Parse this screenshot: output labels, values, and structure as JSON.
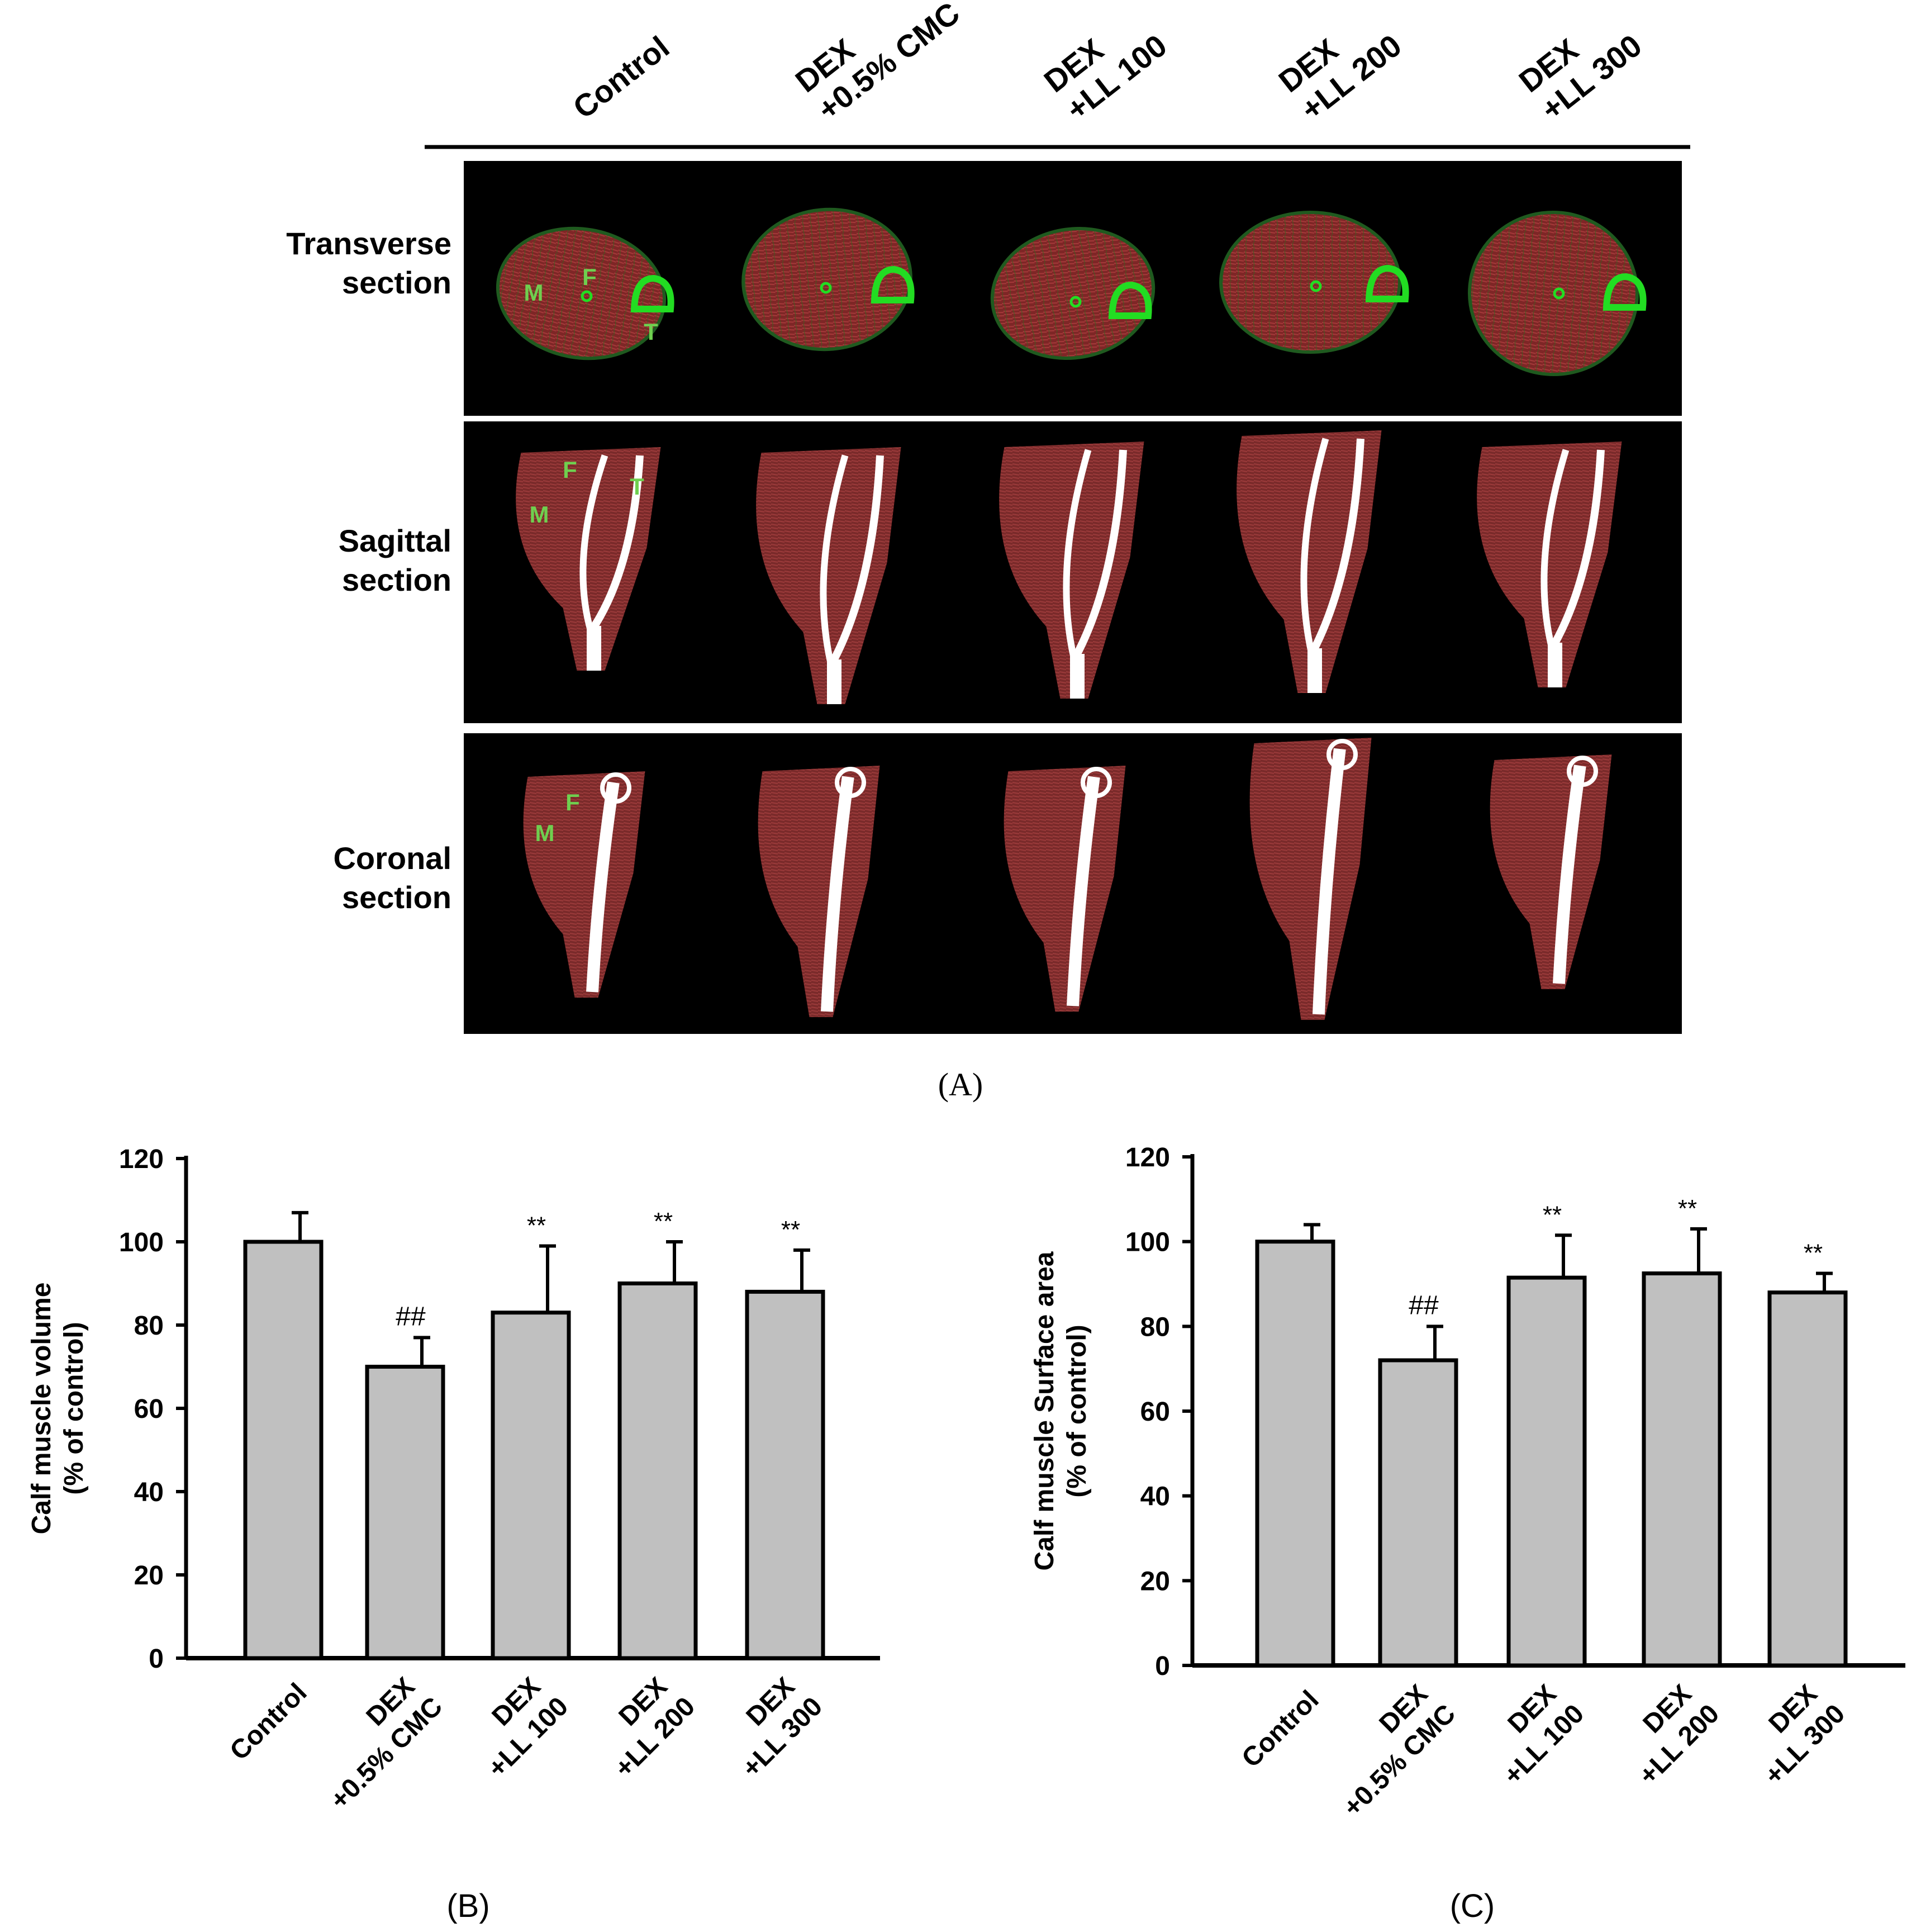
{
  "panel_a": {
    "label": "(A)",
    "groups": [
      "Control",
      "DEX\n+0.5% CMC",
      "DEX\n+LL 100",
      "DEX\n+LL 200",
      "DEX\n+LL 300"
    ],
    "rows": [
      "Transverse\nsection",
      "Sagittal\nsection",
      "Coronal\nsection"
    ],
    "annotations": {
      "transverse": [
        "M",
        "F",
        "T"
      ],
      "sagittal": [
        "F",
        "T",
        "M"
      ],
      "coronal": [
        "F",
        "M"
      ]
    },
    "colors": {
      "background": "#000000",
      "muscle": "#8a2a2a",
      "bone_transverse": "#22dd22",
      "bone_long": "#ffffff",
      "label": "#6fcf4f"
    }
  },
  "chart_data": [
    {
      "type": "bar",
      "panel_label": "(B)",
      "categories": [
        "Control",
        "DEX\n+0.5% CMC",
        "DEX\n+LL 100",
        "DEX\n+LL 200",
        "DEX\n+LL 300"
      ],
      "values": [
        100,
        70,
        83,
        90,
        88
      ],
      "errors": [
        7,
        7,
        16,
        10,
        10
      ],
      "significance": [
        "",
        "##",
        "**",
        "**",
        "**"
      ],
      "ylabel": "Calf muscle volume\n(% of control)",
      "ylim": [
        0,
        120
      ],
      "yticks": [
        0,
        20,
        40,
        60,
        80,
        100,
        120
      ],
      "bar_color": "#c0c0c0",
      "grid": false
    },
    {
      "type": "bar",
      "panel_label": "(C)",
      "categories": [
        "Control",
        "DEX\n+0.5% CMC",
        "DEX\n+LL 100",
        "DEX\n+LL 200",
        "DEX\n+LL 300"
      ],
      "values": [
        100,
        72,
        91.5,
        92.5,
        88
      ],
      "errors": [
        4,
        8,
        10,
        10.5,
        4.5
      ],
      "significance": [
        "",
        "##",
        "**",
        "**",
        "**"
      ],
      "ylabel": "Calf muscle Surface area\n(% of control)",
      "ylim": [
        0,
        120
      ],
      "yticks": [
        0,
        20,
        40,
        60,
        80,
        100,
        120
      ],
      "bar_color": "#c0c0c0",
      "grid": false
    }
  ]
}
